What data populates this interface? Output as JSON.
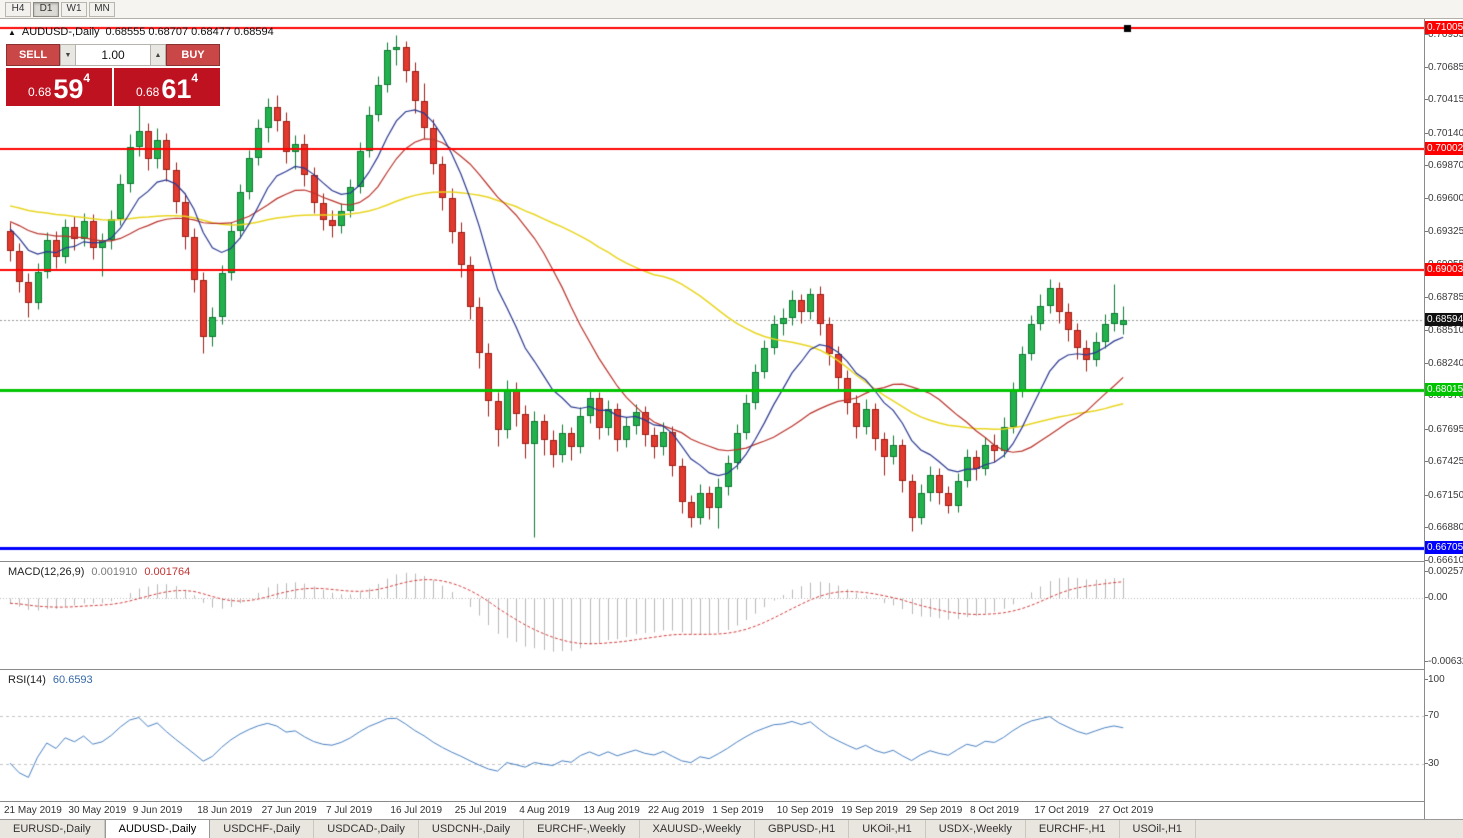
{
  "toolbar": {
    "timeframes": [
      {
        "label": "H4",
        "active": false
      },
      {
        "label": "D1",
        "active": true
      },
      {
        "label": "W1",
        "active": false
      },
      {
        "label": "MN",
        "active": false
      }
    ]
  },
  "chart_header": {
    "title": "AUDUSD-,Daily",
    "ohlc": "0.68555 0.68707 0.68477 0.68594"
  },
  "trade_panel": {
    "sell_label": "SELL",
    "buy_label": "BUY",
    "volume": "1.00",
    "sell_price": {
      "prefix": "0.68",
      "big": "59",
      "sup": "4"
    },
    "buy_price": {
      "prefix": "0.68",
      "big": "61",
      "sup": "4"
    },
    "colors": {
      "button": "#c94747",
      "price_box": "#bf1220"
    }
  },
  "price_axis": {
    "labels": [
      "0.70955",
      "0.70685",
      "0.70415",
      "0.70140",
      "0.69870",
      "0.69600",
      "0.69325",
      "0.69055",
      "0.68785",
      "0.68510",
      "0.68240",
      "0.67970",
      "0.67695",
      "0.67425",
      "0.67150",
      "0.66880",
      "0.66610"
    ]
  },
  "macd_panel": {
    "name": "MACD(12,26,9)",
    "value": "0.001910",
    "signal_value": "0.001764",
    "scale_top": "0.002574",
    "scale_zero": "0.00",
    "scale_bottom": "-0.006326"
  },
  "rsi_panel": {
    "name": "RSI(14)",
    "value": "60.6593",
    "scale_labels": [
      "100",
      "70",
      "30"
    ]
  },
  "tabs": [
    {
      "label": "EURUSD-,Daily",
      "active": false
    },
    {
      "label": "AUDUSD-,Daily",
      "active": true
    },
    {
      "label": "USDCHF-,Daily",
      "active": false
    },
    {
      "label": "USDCAD-,Daily",
      "active": false
    },
    {
      "label": "USDCNH-,Daily",
      "active": false
    },
    {
      "label": "EURCHF-,Weekly",
      "active": false
    },
    {
      "label": "XAUUSD-,Weekly",
      "active": false
    },
    {
      "label": "GBPUSD-,H1",
      "active": false
    },
    {
      "label": "UKOil-,H1",
      "active": false
    },
    {
      "label": "USDX-,Weekly",
      "active": false
    },
    {
      "label": "EURCHF-,H1",
      "active": false
    },
    {
      "label": "USOil-,H1",
      "active": false
    }
  ],
  "chart_data": {
    "type": "candlestick",
    "symbol": "AUDUSD",
    "timeframe": "Daily",
    "ylim": [
      0.6661,
      0.70955
    ],
    "label_interval": 7,
    "x_labels": [
      "21 May 2019",
      "30 May 2019",
      "9 Jun 2019",
      "18 Jun 2019",
      "27 Jun 2019",
      "7 Jul 2019",
      "16 Jul 2019",
      "25 Jul 2019",
      "4 Aug 2019",
      "13 Aug 2019",
      "22 Aug 2019",
      "1 Sep 2019",
      "10 Sep 2019",
      "19 Sep 2019",
      "29 Sep 2019",
      "8 Oct 2019",
      "17 Oct 2019",
      "27 Oct 2019"
    ],
    "current_price": 0.68594,
    "current_price_label": "0.68594",
    "hlines": [
      {
        "price": 0.71005,
        "label": "0.71005",
        "color": "#ff0000",
        "width": 2
      },
      {
        "price": 0.70002,
        "label": "0.70002",
        "color": "#ff0000",
        "width": 2
      },
      {
        "price": 0.69003,
        "label": "0.69003",
        "color": "#ff0000",
        "width": 2
      },
      {
        "price": 0.68015,
        "label": "0.68015",
        "color": "#00c400",
        "width": 3
      },
      {
        "price": 0.66705,
        "label": "0.66705",
        "color": "#0000ff",
        "width": 3
      }
    ],
    "colors": {
      "up_fill": "#22b14c",
      "up_border": "#0e7a33",
      "down_fill": "#e23a2e",
      "down_border": "#9c1f16",
      "ma_fast": "#2b3990",
      "ma_mid": "#b9342c",
      "ma_slow": "#e8d51f",
      "macd_hist": "#b9b9b9",
      "macd_signal": "#d23f3f",
      "rsi_line": "#4a80c0",
      "current_price_line": "#9a9a9a",
      "current_badge": "#111111"
    },
    "indicators": {
      "moving_averages": [
        {
          "period": 10,
          "kind": "ema"
        },
        {
          "period": 20,
          "kind": "sma"
        },
        {
          "period": 50,
          "kind": "sma"
        }
      ],
      "macd": {
        "fast": 12,
        "slow": 26,
        "signal": 9,
        "range": [
          -0.006326,
          0.002574
        ]
      },
      "rsi": {
        "period": 14,
        "levels": [
          70,
          30
        ]
      }
    },
    "ohlc": [
      [
        0.6933,
        0.694,
        0.6908,
        0.6916
      ],
      [
        0.6916,
        0.6923,
        0.6882,
        0.6891
      ],
      [
        0.6891,
        0.6898,
        0.6862,
        0.6873
      ],
      [
        0.6873,
        0.6906,
        0.6868,
        0.6899
      ],
      [
        0.6899,
        0.6932,
        0.6894,
        0.6925
      ],
      [
        0.6925,
        0.6933,
        0.6902,
        0.6911
      ],
      [
        0.6911,
        0.6943,
        0.6906,
        0.6936
      ],
      [
        0.6936,
        0.6945,
        0.6917,
        0.6926
      ],
      [
        0.6926,
        0.6948,
        0.692,
        0.6941
      ],
      [
        0.6941,
        0.6947,
        0.691,
        0.6919
      ],
      [
        0.6919,
        0.6931,
        0.6896,
        0.6925
      ],
      [
        0.6925,
        0.695,
        0.6918,
        0.6943
      ],
      [
        0.6943,
        0.698,
        0.6938,
        0.6972
      ],
      [
        0.6972,
        0.7013,
        0.6965,
        0.7002
      ],
      [
        0.7002,
        0.704,
        0.6995,
        0.7015
      ],
      [
        0.7015,
        0.7022,
        0.6983,
        0.6992
      ],
      [
        0.6992,
        0.7018,
        0.6985,
        0.7008
      ],
      [
        0.7008,
        0.7014,
        0.6974,
        0.6983
      ],
      [
        0.6983,
        0.699,
        0.6948,
        0.6957
      ],
      [
        0.6957,
        0.6964,
        0.6918,
        0.6928
      ],
      [
        0.6928,
        0.6935,
        0.6882,
        0.6892
      ],
      [
        0.6892,
        0.6899,
        0.6832,
        0.6845
      ],
      [
        0.6845,
        0.687,
        0.6838,
        0.6862
      ],
      [
        0.6862,
        0.6905,
        0.6856,
        0.6898
      ],
      [
        0.6898,
        0.694,
        0.6892,
        0.6933
      ],
      [
        0.6933,
        0.6972,
        0.6927,
        0.6965
      ],
      [
        0.6965,
        0.7,
        0.6959,
        0.6993
      ],
      [
        0.6993,
        0.7025,
        0.6987,
        0.7018
      ],
      [
        0.7018,
        0.7043,
        0.7006,
        0.7035
      ],
      [
        0.7035,
        0.7045,
        0.7015,
        0.7024
      ],
      [
        0.7024,
        0.7031,
        0.6989,
        0.6998
      ],
      [
        0.6998,
        0.7012,
        0.6984,
        0.7005
      ],
      [
        0.7005,
        0.7013,
        0.697,
        0.6979
      ],
      [
        0.6979,
        0.6986,
        0.6948,
        0.6956
      ],
      [
        0.6956,
        0.6964,
        0.6934,
        0.6942
      ],
      [
        0.6942,
        0.695,
        0.6928,
        0.6937
      ],
      [
        0.6937,
        0.6956,
        0.6931,
        0.6949
      ],
      [
        0.6949,
        0.6976,
        0.6944,
        0.6969
      ],
      [
        0.6969,
        0.7006,
        0.6964,
        0.6999
      ],
      [
        0.6999,
        0.7036,
        0.6994,
        0.7029
      ],
      [
        0.7029,
        0.7061,
        0.7024,
        0.7053
      ],
      [
        0.7053,
        0.7089,
        0.7048,
        0.7082
      ],
      [
        0.7082,
        0.7095,
        0.707,
        0.7085
      ],
      [
        0.7085,
        0.709,
        0.7056,
        0.7065
      ],
      [
        0.7065,
        0.7072,
        0.703,
        0.704
      ],
      [
        0.704,
        0.7055,
        0.701,
        0.7018
      ],
      [
        0.7018,
        0.7025,
        0.698,
        0.6988
      ],
      [
        0.6988,
        0.6995,
        0.695,
        0.696
      ],
      [
        0.696,
        0.6968,
        0.6923,
        0.6932
      ],
      [
        0.6932,
        0.694,
        0.6895,
        0.6905
      ],
      [
        0.6905,
        0.6912,
        0.686,
        0.687
      ],
      [
        0.687,
        0.6878,
        0.682,
        0.6832
      ],
      [
        0.6832,
        0.684,
        0.678,
        0.6792
      ],
      [
        0.6792,
        0.68,
        0.6755,
        0.6768
      ],
      [
        0.6768,
        0.681,
        0.6762,
        0.6802
      ],
      [
        0.6802,
        0.6808,
        0.6772,
        0.6782
      ],
      [
        0.6782,
        0.6789,
        0.6745,
        0.6757
      ],
      [
        0.6757,
        0.6784,
        0.668,
        0.6776
      ],
      [
        0.6776,
        0.6782,
        0.6748,
        0.676
      ],
      [
        0.676,
        0.6768,
        0.6738,
        0.6748
      ],
      [
        0.6748,
        0.6773,
        0.6742,
        0.6766
      ],
      [
        0.6766,
        0.6771,
        0.6744,
        0.6754
      ],
      [
        0.6754,
        0.6787,
        0.6749,
        0.678
      ],
      [
        0.678,
        0.6802,
        0.6774,
        0.6795
      ],
      [
        0.6795,
        0.68,
        0.6761,
        0.677
      ],
      [
        0.677,
        0.6793,
        0.6764,
        0.6786
      ],
      [
        0.6786,
        0.6791,
        0.6751,
        0.676
      ],
      [
        0.676,
        0.6779,
        0.6754,
        0.6772
      ],
      [
        0.6772,
        0.679,
        0.6765,
        0.6783
      ],
      [
        0.6783,
        0.6788,
        0.6755,
        0.6764
      ],
      [
        0.6764,
        0.6771,
        0.6745,
        0.6754
      ],
      [
        0.6754,
        0.6775,
        0.6748,
        0.6767
      ],
      [
        0.6767,
        0.6772,
        0.673,
        0.6739
      ],
      [
        0.6739,
        0.6745,
        0.67,
        0.6709
      ],
      [
        0.6709,
        0.6715,
        0.6688,
        0.6696
      ],
      [
        0.6696,
        0.6724,
        0.6691,
        0.6716
      ],
      [
        0.6716,
        0.6722,
        0.6695,
        0.6704
      ],
      [
        0.6704,
        0.6729,
        0.66875,
        0.6721
      ],
      [
        0.6721,
        0.6748,
        0.6715,
        0.6741
      ],
      [
        0.6741,
        0.6773,
        0.6736,
        0.6766
      ],
      [
        0.6766,
        0.6798,
        0.6761,
        0.6791
      ],
      [
        0.6791,
        0.6823,
        0.6786,
        0.6816
      ],
      [
        0.6816,
        0.6843,
        0.6811,
        0.6836
      ],
      [
        0.6836,
        0.6863,
        0.6831,
        0.6856
      ],
      [
        0.6856,
        0.6869,
        0.6847,
        0.6861
      ],
      [
        0.6861,
        0.6884,
        0.6855,
        0.6876
      ],
      [
        0.6876,
        0.6881,
        0.6857,
        0.6866
      ],
      [
        0.6866,
        0.6886,
        0.686,
        0.6881
      ],
      [
        0.6881,
        0.6887,
        0.6847,
        0.6856
      ],
      [
        0.6856,
        0.6862,
        0.6822,
        0.6831
      ],
      [
        0.6831,
        0.6838,
        0.6802,
        0.6811
      ],
      [
        0.6811,
        0.6818,
        0.6782,
        0.6791
      ],
      [
        0.6791,
        0.6797,
        0.6762,
        0.6771
      ],
      [
        0.6771,
        0.6794,
        0.6765,
        0.6786
      ],
      [
        0.6786,
        0.6791,
        0.6752,
        0.6761
      ],
      [
        0.6761,
        0.6767,
        0.6731,
        0.6746
      ],
      [
        0.6746,
        0.6764,
        0.674,
        0.6756
      ],
      [
        0.6756,
        0.6761,
        0.6717,
        0.6726
      ],
      [
        0.6726,
        0.6732,
        0.6685,
        0.6696
      ],
      [
        0.6696,
        0.6724,
        0.6691,
        0.6716
      ],
      [
        0.6716,
        0.6739,
        0.671,
        0.6731
      ],
      [
        0.6731,
        0.6737,
        0.6707,
        0.6716
      ],
      [
        0.6716,
        0.6722,
        0.67,
        0.6706
      ],
      [
        0.6706,
        0.6733,
        0.6701,
        0.6726
      ],
      [
        0.6726,
        0.6753,
        0.6721,
        0.6746
      ],
      [
        0.6746,
        0.6752,
        0.6727,
        0.6736
      ],
      [
        0.6736,
        0.6763,
        0.6731,
        0.6756
      ],
      [
        0.6756,
        0.6765,
        0.6742,
        0.6751
      ],
      [
        0.6751,
        0.6779,
        0.6746,
        0.6771
      ],
      [
        0.6771,
        0.6808,
        0.6766,
        0.6801
      ],
      [
        0.6801,
        0.6838,
        0.6796,
        0.6831
      ],
      [
        0.6831,
        0.6863,
        0.6826,
        0.6856
      ],
      [
        0.6856,
        0.6881,
        0.6851,
        0.6871
      ],
      [
        0.6871,
        0.6893,
        0.6865,
        0.6886
      ],
      [
        0.6886,
        0.6891,
        0.6857,
        0.6866
      ],
      [
        0.6866,
        0.6873,
        0.6842,
        0.6851
      ],
      [
        0.6851,
        0.6857,
        0.6827,
        0.6836
      ],
      [
        0.6836,
        0.6843,
        0.6817,
        0.6826
      ],
      [
        0.6826,
        0.6849,
        0.6821,
        0.6841
      ],
      [
        0.6841,
        0.6864,
        0.6836,
        0.6856
      ],
      [
        0.6856,
        0.6889,
        0.685,
        0.6865
      ],
      [
        0.68555,
        0.68707,
        0.68477,
        0.68594
      ]
    ]
  }
}
